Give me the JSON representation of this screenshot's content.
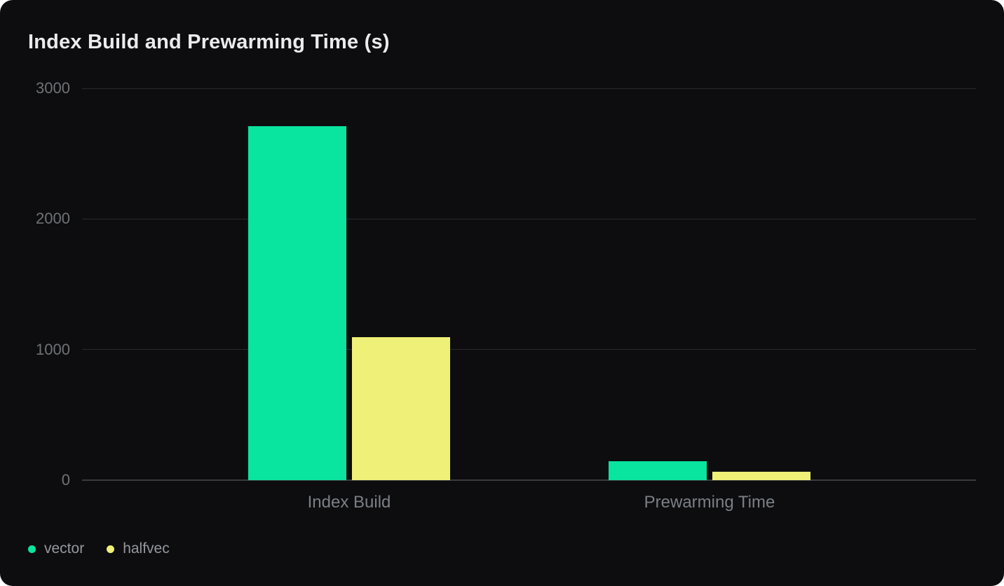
{
  "chart_data": {
    "type": "bar",
    "title": "Index Build and Prewarming Time (s)",
    "categories": [
      "Index Build",
      "Prewarming Time"
    ],
    "series": [
      {
        "name": "vector",
        "color": "#09E49F",
        "values": [
          2710,
          145
        ]
      },
      {
        "name": "halfvec",
        "color": "#EEF078",
        "values": [
          1095,
          65
        ]
      }
    ],
    "xlabel": "",
    "ylabel": "",
    "ylim": [
      0,
      3000
    ],
    "yticks": [
      0,
      1000,
      2000,
      3000
    ],
    "grid": true,
    "legend_position": "bottom-left",
    "colors": {
      "card_background": "#0D0D0F",
      "gridline": "#2A2A2D",
      "zero_line": "#3B3B3E",
      "title_text": "#EBEBEC",
      "tick_label": "#6E7277",
      "category_label": "#7B7F85",
      "legend_label": "#94989E"
    }
  }
}
